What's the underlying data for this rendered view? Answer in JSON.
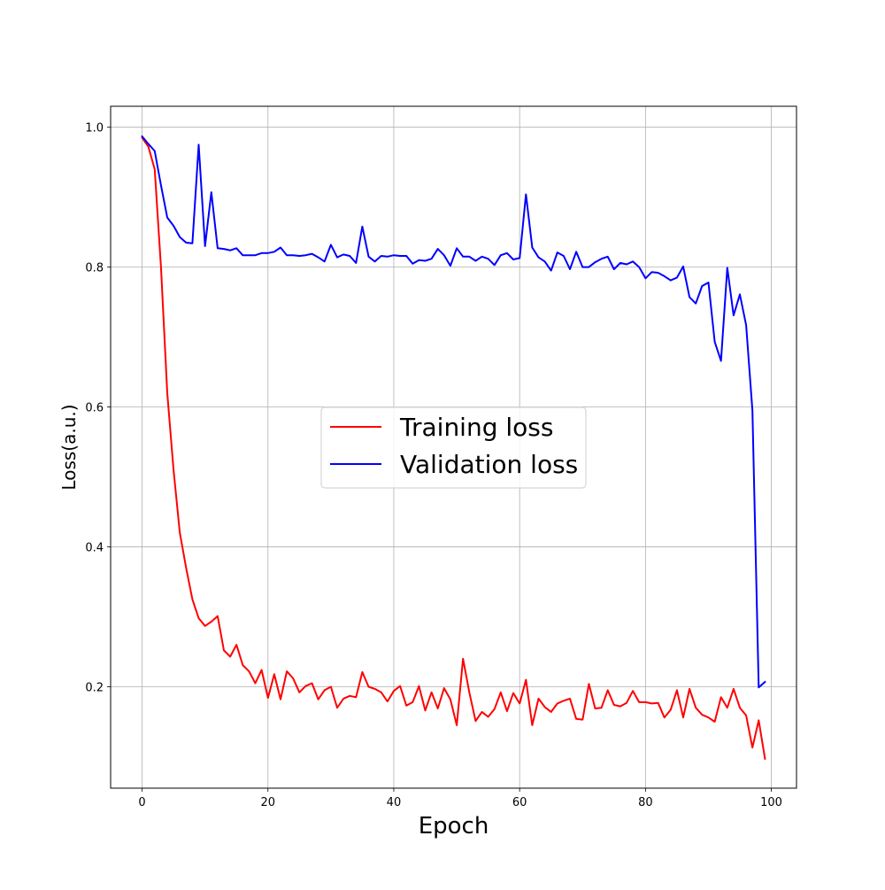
{
  "chart_data": {
    "type": "line",
    "title": "",
    "xlabel": "Epoch",
    "ylabel": "Loss(a.u.)",
    "xlim": [
      -5,
      104
    ],
    "ylim": [
      0.055,
      1.03
    ],
    "xticks": [
      0,
      20,
      40,
      60,
      80,
      100
    ],
    "yticks": [
      0.2,
      0.4,
      0.6,
      0.8,
      1.0
    ],
    "xtick_labels": [
      "0",
      "20",
      "40",
      "60",
      "80",
      "100"
    ],
    "ytick_labels": [
      "0.2",
      "0.4",
      "0.6",
      "0.8",
      "1.0"
    ],
    "grid": true,
    "legend_position": "center",
    "series": [
      {
        "name": "Training loss",
        "color": "#ff0000",
        "x": [
          0,
          1,
          2,
          3,
          4,
          5,
          6,
          7,
          8,
          9,
          10,
          11,
          12,
          13,
          14,
          15,
          16,
          17,
          18,
          19,
          20,
          21,
          22,
          23,
          24,
          25,
          26,
          27,
          28,
          29,
          30,
          31,
          32,
          33,
          34,
          35,
          36,
          37,
          38,
          39,
          40,
          41,
          42,
          43,
          44,
          45,
          46,
          47,
          48,
          49,
          50,
          51,
          52,
          53,
          54,
          55,
          56,
          57,
          58,
          59,
          60,
          61,
          62,
          63,
          64,
          65,
          66,
          67,
          68,
          69,
          70,
          71,
          72,
          73,
          74,
          75,
          76,
          77,
          78,
          79,
          80,
          81,
          82,
          83,
          84,
          85,
          86,
          87,
          88,
          89,
          90,
          91,
          92,
          93,
          94,
          95,
          96,
          97,
          98,
          99
        ],
        "y": [
          0.985,
          0.972,
          0.94,
          0.8,
          0.62,
          0.51,
          0.42,
          0.37,
          0.325,
          0.298,
          0.287,
          0.293,
          0.301,
          0.252,
          0.243,
          0.26,
          0.231,
          0.222,
          0.205,
          0.224,
          0.184,
          0.218,
          0.182,
          0.222,
          0.212,
          0.192,
          0.201,
          0.205,
          0.182,
          0.195,
          0.2,
          0.17,
          0.183,
          0.187,
          0.185,
          0.221,
          0.2,
          0.197,
          0.192,
          0.179,
          0.194,
          0.201,
          0.173,
          0.178,
          0.201,
          0.166,
          0.192,
          0.169,
          0.198,
          0.182,
          0.145,
          0.24,
          0.192,
          0.151,
          0.164,
          0.157,
          0.168,
          0.192,
          0.165,
          0.191,
          0.176,
          0.21,
          0.145,
          0.183,
          0.171,
          0.164,
          0.176,
          0.18,
          0.183,
          0.154,
          0.153,
          0.204,
          0.169,
          0.17,
          0.195,
          0.174,
          0.172,
          0.177,
          0.194,
          0.178,
          0.178,
          0.176,
          0.177,
          0.156,
          0.167,
          0.195,
          0.156,
          0.197,
          0.17,
          0.16,
          0.156,
          0.15,
          0.185,
          0.17,
          0.197,
          0.17,
          0.159,
          0.113,
          0.152,
          0.097
        ]
      },
      {
        "name": "Validation loss",
        "color": "#0000ff",
        "x": [
          0,
          1,
          2,
          3,
          4,
          5,
          6,
          7,
          8,
          9,
          10,
          11,
          12,
          13,
          14,
          15,
          16,
          17,
          18,
          19,
          20,
          21,
          22,
          23,
          24,
          25,
          26,
          27,
          28,
          29,
          30,
          31,
          32,
          33,
          34,
          35,
          36,
          37,
          38,
          39,
          40,
          41,
          42,
          43,
          44,
          45,
          46,
          47,
          48,
          49,
          50,
          51,
          52,
          53,
          54,
          55,
          56,
          57,
          58,
          59,
          60,
          61,
          62,
          63,
          64,
          65,
          66,
          67,
          68,
          69,
          70,
          71,
          72,
          73,
          74,
          75,
          76,
          77,
          78,
          79,
          80,
          81,
          82,
          83,
          84,
          85,
          86,
          87,
          88,
          89,
          90,
          91,
          92,
          93,
          94,
          95,
          96,
          97,
          98,
          99
        ],
        "y": [
          0.987,
          0.976,
          0.966,
          0.917,
          0.871,
          0.859,
          0.843,
          0.835,
          0.834,
          0.975,
          0.83,
          0.907,
          0.827,
          0.826,
          0.824,
          0.827,
          0.817,
          0.817,
          0.817,
          0.82,
          0.82,
          0.822,
          0.828,
          0.817,
          0.817,
          0.816,
          0.817,
          0.819,
          0.814,
          0.808,
          0.832,
          0.814,
          0.818,
          0.816,
          0.806,
          0.858,
          0.815,
          0.808,
          0.816,
          0.815,
          0.817,
          0.816,
          0.816,
          0.805,
          0.81,
          0.809,
          0.812,
          0.826,
          0.817,
          0.802,
          0.827,
          0.815,
          0.815,
          0.809,
          0.815,
          0.812,
          0.803,
          0.817,
          0.82,
          0.811,
          0.813,
          0.904,
          0.828,
          0.814,
          0.808,
          0.795,
          0.821,
          0.816,
          0.797,
          0.822,
          0.8,
          0.8,
          0.807,
          0.812,
          0.815,
          0.797,
          0.806,
          0.804,
          0.808,
          0.8,
          0.784,
          0.793,
          0.792,
          0.787,
          0.781,
          0.785,
          0.801,
          0.757,
          0.748,
          0.773,
          0.778,
          0.693,
          0.666,
          0.799,
          0.731,
          0.761,
          0.717,
          0.595,
          0.199,
          0.207
        ]
      }
    ]
  }
}
